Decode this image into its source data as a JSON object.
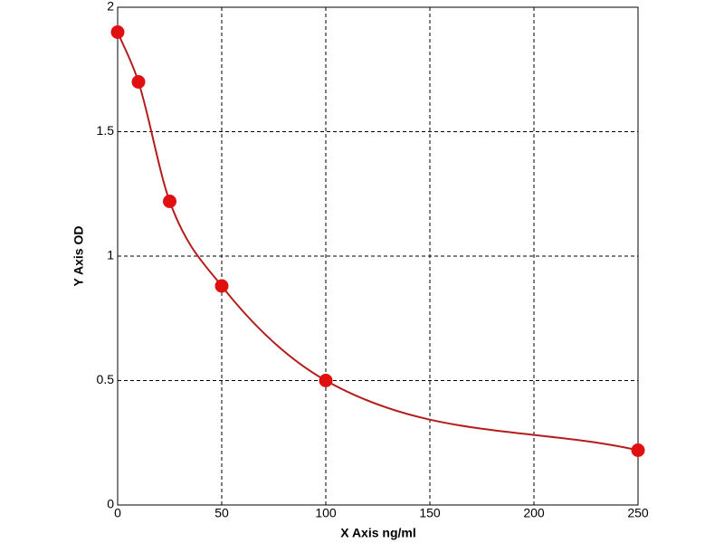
{
  "chart_data": {
    "type": "scatter",
    "x_label": "X Axis ng/ml",
    "y_label": "Y Axis OD",
    "series": [
      {
        "x": [
          0,
          10,
          25,
          50,
          100,
          250
        ],
        "values": [
          1.9,
          1.7,
          1.22,
          0.88,
          0.5,
          0.22
        ],
        "color": "#e01010",
        "line_color": "#b51c1c"
      }
    ],
    "curve": "smooth",
    "xlim": [
      0,
      250
    ],
    "xticks": [
      0,
      50,
      100,
      150,
      200,
      250
    ],
    "ylim": [
      0,
      2
    ],
    "yticks": [
      0,
      0.5,
      1,
      1.5,
      2
    ],
    "grid": true
  }
}
